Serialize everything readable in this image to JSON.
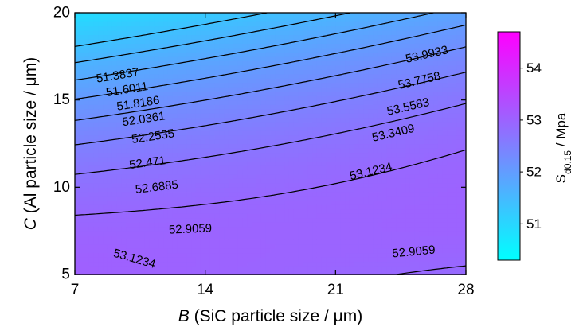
{
  "chart_data": {
    "type": "contour",
    "xlabel_italic": "B",
    "xlabel_rest": " (SiC particle size / μm)",
    "ylabel_italic": "C",
    "ylabel_rest": " (Al particle size / μm)",
    "xlim": [
      7,
      28
    ],
    "ylim": [
      5,
      20
    ],
    "xticks": [
      7,
      14,
      21,
      28
    ],
    "yticks": [
      5,
      10,
      15,
      20
    ],
    "grid": false,
    "colorbar": {
      "label_main": "S",
      "label_sub": "d0.15",
      "label_rest": " / Mpa",
      "range": [
        50.3,
        54.7
      ],
      "ticks": [
        51,
        52,
        53,
        54
      ],
      "colormap": [
        "#00ffff",
        "#ff00ff"
      ]
    },
    "levels": [
      {
        "value": 51.3837,
        "label": "51.3837"
      },
      {
        "value": 51.6011,
        "label": "51.6011"
      },
      {
        "value": 51.8186,
        "label": "51.8186"
      },
      {
        "value": 52.0361,
        "label": "52.0361"
      },
      {
        "value": 52.2535,
        "label": "52.2535"
      },
      {
        "value": 52.471,
        "label": "52.471"
      },
      {
        "value": 52.6885,
        "label": "52.6885"
      },
      {
        "value": 52.9059,
        "label": "52.9059"
      },
      {
        "value": 53.1234,
        "label": "53.1234"
      },
      {
        "value": 53.3409,
        "label": "53.3409"
      },
      {
        "value": 53.5583,
        "label": "53.5583"
      },
      {
        "value": 53.7758,
        "label": "53.7758"
      },
      {
        "value": 53.9933,
        "label": "53.9933"
      }
    ],
    "contour_labels": [
      {
        "text": "51.3837",
        "x": 9.3,
        "y": 16.4
      },
      {
        "text": "51.6011",
        "x": 9.8,
        "y": 15.6
      },
      {
        "text": "51.8186",
        "x": 10.4,
        "y": 14.8
      },
      {
        "text": "52.0361",
        "x": 10.7,
        "y": 13.9
      },
      {
        "text": "52.2535",
        "x": 11.2,
        "y": 12.9
      },
      {
        "text": "52.471",
        "x": 10.9,
        "y": 11.4
      },
      {
        "text": "52.6885",
        "x": 11.4,
        "y": 10.0
      },
      {
        "text": "52.9059",
        "x": 13.2,
        "y": 7.6
      },
      {
        "text": "53.1234",
        "x": 10.2,
        "y": 5.9
      },
      {
        "text": "53.9933",
        "x": 25.9,
        "y": 17.6
      },
      {
        "text": "53.7758",
        "x": 25.5,
        "y": 16.1
      },
      {
        "text": "53.5583",
        "x": 24.9,
        "y": 14.6
      },
      {
        "text": "53.3409",
        "x": 24.1,
        "y": 13.1
      },
      {
        "text": "53.1234",
        "x": 22.9,
        "y": 10.9
      },
      {
        "text": "52.9059",
        "x": 25.2,
        "y": 6.3
      }
    ]
  }
}
